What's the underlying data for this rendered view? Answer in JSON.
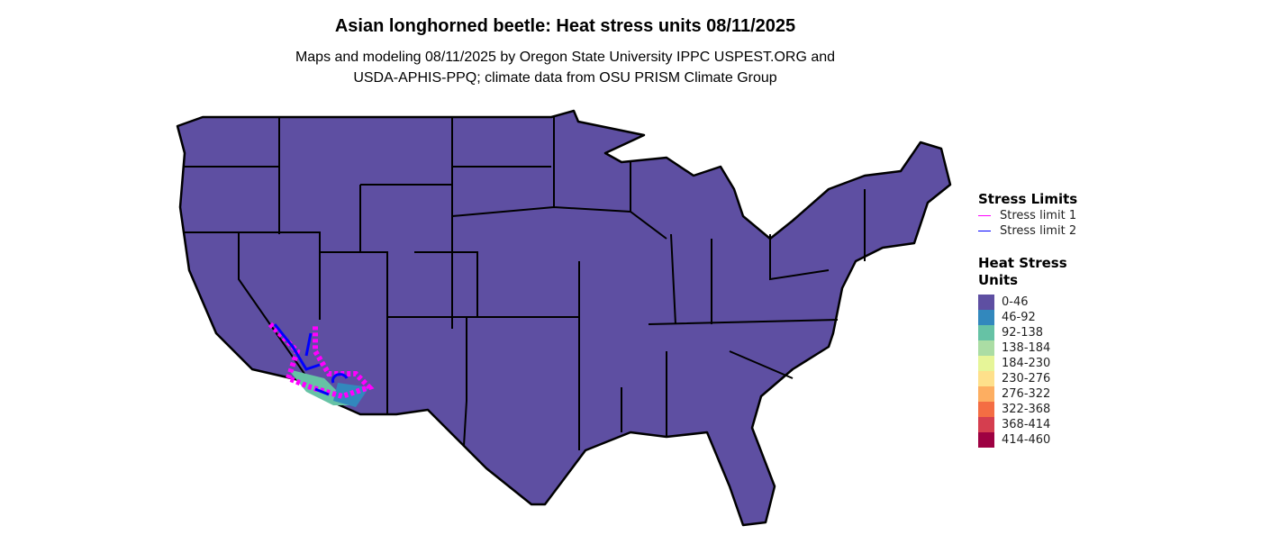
{
  "title": "Asian longhorned beetle: Heat stress units 08/11/2025",
  "subtitle_line1": "Maps and modeling 08/11/2025 by Oregon State University IPPC USPEST.ORG and",
  "subtitle_line2": "USDA-APHIS-PPQ; climate data from OSU PRISM Climate Group",
  "legend_limits": {
    "title": "Stress Limits",
    "items": [
      {
        "label": "Stress limit 1",
        "color": "#FF00FF"
      },
      {
        "label": "Stress limit 2",
        "color": "#0000FF"
      }
    ]
  },
  "legend_units": {
    "title_line1": "Heat Stress",
    "title_line2": "Units",
    "items": [
      {
        "label": "0-46",
        "color": "#5E4FA2"
      },
      {
        "label": "46-92",
        "color": "#3288BD"
      },
      {
        "label": "92-138",
        "color": "#66C2A5"
      },
      {
        "label": "138-184",
        "color": "#ABDDA4"
      },
      {
        "label": "184-230",
        "color": "#E6F598"
      },
      {
        "label": "230-276",
        "color": "#FEE08B"
      },
      {
        "label": "276-322",
        "color": "#FDAE61"
      },
      {
        "label": "322-368",
        "color": "#F46D43"
      },
      {
        "label": "368-414",
        "color": "#D53E4F"
      },
      {
        "label": "414-460",
        "color": "#9E0142"
      }
    ]
  }
}
